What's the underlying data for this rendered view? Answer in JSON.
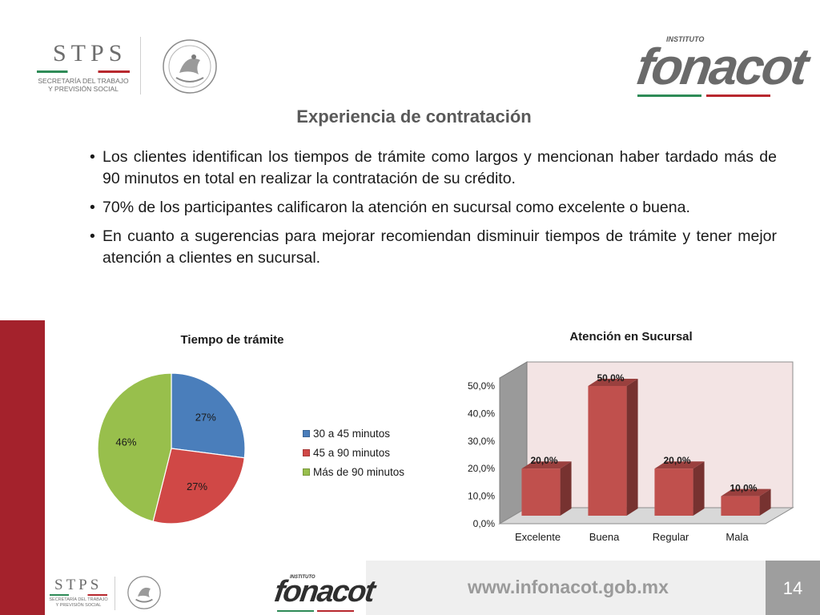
{
  "header": {
    "stps_name": "STPS",
    "stps_subtitle": "SECRETARÍA DEL TRABAJO Y PREVISIÓN SOCIAL",
    "fonacot_prefix": "INSTITUTO",
    "fonacot_name": "fonacot"
  },
  "title": "Experiencia de contratación",
  "bullets": [
    "Los clientes identifican los tiempos de trámite como largos y mencionan haber tardado más de 90 minutos en total en realizar la contratación de su crédito.",
    "70% de los participantes calificaron la atención en sucursal como excelente o buena.",
    "En cuanto a sugerencias para mejorar recomiendan disminuir tiempos de trámite y tener mejor atención a clientes en sucursal."
  ],
  "bullet_glyph": "•",
  "chart_data": [
    {
      "type": "pie",
      "title": "Tiempo de trámite",
      "categories": [
        "30 a 45 minutos",
        "45 a 90 minutos",
        "Más de 90 minutos"
      ],
      "values": [
        27,
        27,
        46
      ],
      "labels": [
        "27%",
        "27%",
        "46%"
      ],
      "colors": [
        "#4a7ebb",
        "#d04846",
        "#98bf4c"
      ],
      "legend_position": "right"
    },
    {
      "type": "bar",
      "title": "Atención en Sucursal",
      "categories": [
        "Excelente",
        "Buena",
        "Regular",
        "Mala"
      ],
      "values": [
        20.0,
        50.0,
        20.0,
        10.0
      ],
      "labels": [
        "20,0%",
        "50,0%",
        "20,0%",
        "10,0%"
      ],
      "yticks": [
        "0,0%",
        "10,0%",
        "20,0%",
        "30,0%",
        "40,0%",
        "50,0%"
      ],
      "ylim": [
        0,
        50
      ],
      "color": "#c0504d",
      "grid": false,
      "style": "3d"
    }
  ],
  "footer": {
    "url": "www.infonacot.gob.mx",
    "page": "14",
    "stps_name": "STPS",
    "stps_subtitle": "SECRETARÍA DEL TRABAJO Y PREVISIÓN SOCIAL",
    "fonacot_prefix": "INSTITUTO",
    "fonacot_name": "fonacot"
  },
  "colors": {
    "brand_red": "#a4222c",
    "brand_green": "#2e8b57",
    "text_gray": "#595959"
  }
}
